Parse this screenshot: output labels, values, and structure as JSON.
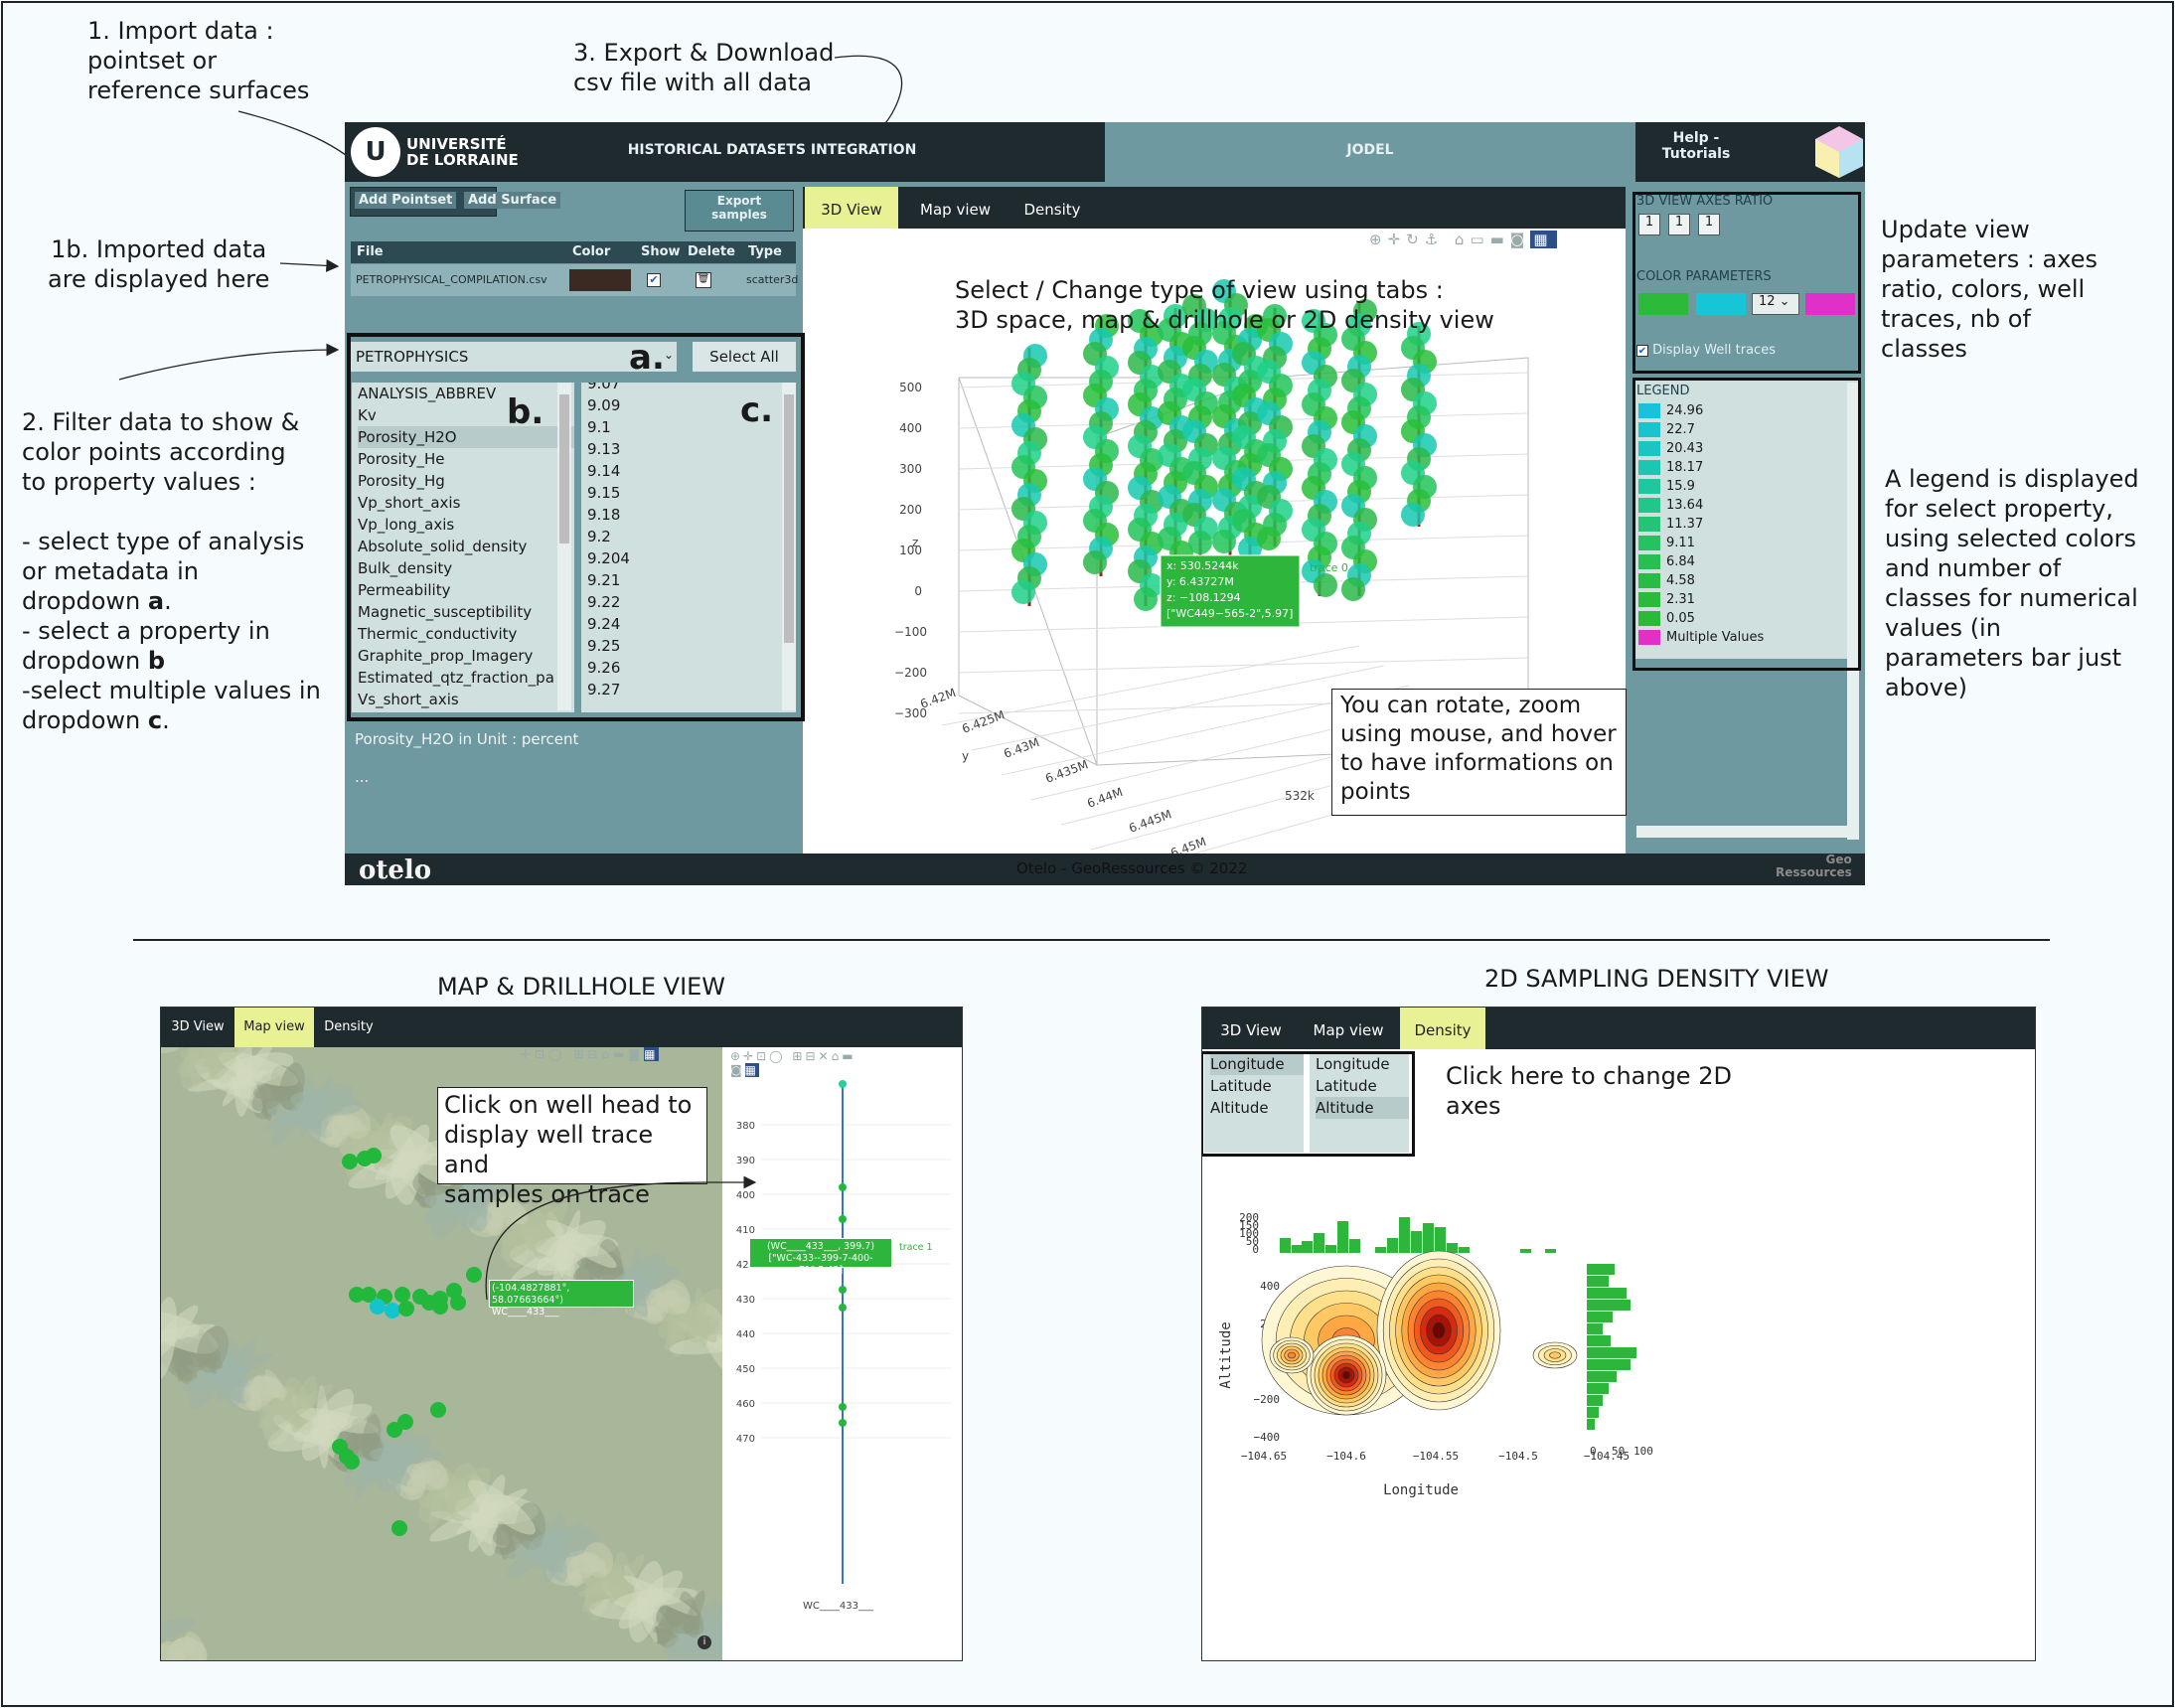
{
  "annotations": {
    "import": "1. Import data :\npointset or\nreference surfaces",
    "export": "3. Export & Download\ncsv file with all data",
    "imported": "1b. Imported data\nare displayed here",
    "filter": "2. Filter data to show &\ncolor points according\nto property values :",
    "filter_a": "- select type of analysis\nor metadata in\ndropdown ",
    "filter_b": "- select a property in\ndropdown ",
    "filter_c": "-select multiple values in\ndropdown ",
    "letter_a": "a",
    "letter_b": "b",
    "letter_c": "c",
    "dot": ".",
    "tabs_note": "Select / Change type of view using tabs :\n3D space, map & drillhole or 2D density view",
    "rotate_note": "You can rotate, zoom\nusing mouse, and hover\nto have informations on\npoints",
    "update_note": "Update view\nparameters : axes\nratio, colors,  well\ntraces, nb of\nclasses",
    "legend_note": "A legend is displayed\nfor select property,\nusing selected colors\nand number of\nclasses for numerical\nvalues (in\nparameters bar just\nabove)",
    "map_title": "MAP & DRILLHOLE VIEW",
    "density_title": "2D SAMPLING DENSITY VIEW",
    "well_note": "Click on well head to\ndisplay well trace and\nsamples on trace",
    "axes_note": "Click here to change 2D\naxes"
  },
  "header": {
    "logo_line1": "UNIVERSITÉ",
    "logo_line2": "DE LORRAINE",
    "title": "HISTORICAL DATASETS INTEGRATION",
    "jodel": "JODEL",
    "help": "Help -\nTutorials"
  },
  "left": {
    "add_pointset": "Add Pointset",
    "add_surface": "Add Surface",
    "export": "Export\nsamples",
    "table_headers": [
      "File",
      "Color",
      "Show",
      "Delete",
      "Type"
    ],
    "file_name": "PETROPHYSICAL_COMPILATION.csv",
    "file_type": "scatter3d",
    "file_color": "#3a2a22",
    "dropdown_a": "PETROPHYSICS",
    "select_all": "Select All",
    "list_b": [
      "ANALYSIS_ABBREV",
      "Kv",
      "Porosity_H2O",
      "Porosity_He",
      "Porosity_Hg",
      "Vp_short_axis",
      "Vp_long_axis",
      "Absolute_solid_density",
      "Bulk_density",
      "Permeability",
      "Magnetic_susceptibility",
      "Thermic_conductivity",
      "Graphite_prop_Imagery",
      "Estimated_qtz_fraction_pa",
      "Vs_short_axis"
    ],
    "list_c": [
      "9.07",
      "9.09",
      "9.1",
      "9.13",
      "9.14",
      "9.15",
      "9.18",
      "9.2",
      "9.204",
      "9.21",
      "9.22",
      "9.24",
      "9.25",
      "9.26",
      "9.27"
    ],
    "unit_info": "Porosity_H2O in Unit : percent",
    "ellipsis": "..."
  },
  "tabs": [
    "3D View",
    "Map view",
    "Density"
  ],
  "plot3d": {
    "z_ticks": [
      "500",
      "400",
      "300",
      "200",
      "100",
      "0",
      "−100",
      "−200",
      "−300"
    ],
    "z_label": "z",
    "y_label": "y",
    "y_ticks": [
      "6.42M",
      "6.425M",
      "6.43M",
      "6.435M",
      "6.44M",
      "6.445M",
      "6.45M"
    ],
    "x_tick": "532k",
    "hover": [
      "x: 530.5244k",
      "y: 6.43727M",
      "z: −108.1294",
      "[\"WC449−565-2\",5.97]"
    ],
    "trace": "trace 0"
  },
  "right": {
    "axes_ratio_label": "3D VIEW AXES RATIO",
    "axes_ratio": [
      "1",
      "1",
      "1"
    ],
    "color_params_label": "COLOR PARAMETERS",
    "colors": [
      "#2dba3a",
      "#16c5d6",
      "#e030c8"
    ],
    "classes": "12",
    "well_traces": "Display Well traces",
    "legend_label": "LEGEND",
    "legend": [
      {
        "v": "24.96",
        "c": "#18c2da"
      },
      {
        "v": "22.7",
        "c": "#1ac4cf"
      },
      {
        "v": "20.43",
        "c": "#1bc6c2"
      },
      {
        "v": "18.17",
        "c": "#1dc6b1"
      },
      {
        "v": "15.9",
        "c": "#1fc79e"
      },
      {
        "v": "13.64",
        "c": "#21c78a"
      },
      {
        "v": "11.37",
        "c": "#23c476"
      },
      {
        "v": "9.11",
        "c": "#25c262"
      },
      {
        "v": "6.84",
        "c": "#27bf52"
      },
      {
        "v": "4.58",
        "c": "#29bc44"
      },
      {
        "v": "2.31",
        "c": "#2aba3c"
      },
      {
        "v": "0.05",
        "c": "#2bb938"
      },
      {
        "v": "Multiple Values",
        "c": "#e030c8"
      }
    ]
  },
  "footer": {
    "text": "Otelo - GeoRessources © 2022",
    "otelo": "otelo",
    "geo": "Geo\nRessources"
  },
  "map": {
    "tabs": [
      "3D View",
      "Map view",
      "Density"
    ],
    "hover": "(-104.4827881°, 58.07663664°)\nWC____433___",
    "drill_ticks": [
      "380",
      "390",
      "400",
      "410",
      "420",
      "430",
      "440",
      "450",
      "460",
      "470"
    ],
    "drill_hover": "(WC____433___, 399.7)\n[\"WC-433--399-7-400-71\",5.43]",
    "trace": "trace 1",
    "well": "WC____433___"
  },
  "density": {
    "tabs": [
      "3D View",
      "Map view",
      "Density"
    ],
    "sel1": [
      "Longitude",
      "Latitude",
      "Altitude"
    ],
    "sel2": [
      "Longitude",
      "Latitude",
      "Altitude"
    ],
    "top_ticks": [
      "200",
      "150",
      "100",
      "50",
      "0"
    ],
    "y_ticks": [
      "400",
      "200",
      "0",
      "−200",
      "−400"
    ],
    "x_ticks": [
      "−104.65",
      "−104.6",
      "−104.55",
      "−104.5",
      "−104.45"
    ],
    "right_ticks": [
      "0",
      "50",
      "100"
    ],
    "x_label": "Longitude",
    "y_label": "Altitude"
  }
}
